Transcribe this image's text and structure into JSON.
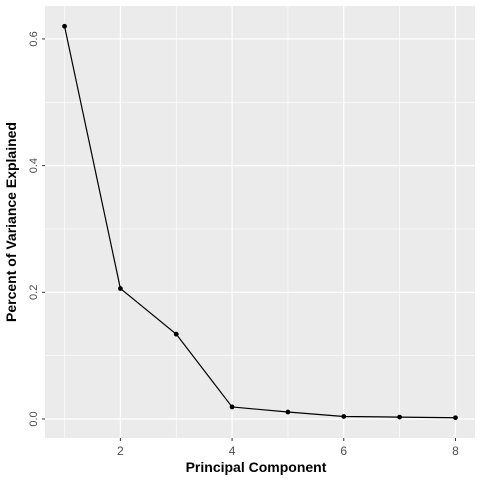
{
  "chart_data": {
    "type": "line",
    "xlabel": "Principal Component",
    "ylabel": "Percent of Variance Explained",
    "x": [
      1,
      2,
      3,
      4,
      5,
      6,
      7,
      8
    ],
    "series": [
      {
        "values": [
          0.62,
          0.206,
          0.134,
          0.019,
          0.011,
          0.004,
          0.003,
          0.002
        ]
      }
    ],
    "xlim": [
      0.65,
      8.35
    ],
    "ylim": [
      -0.03,
      0.652
    ],
    "x_ticks": [
      2,
      4,
      6,
      8
    ],
    "x_tick_labels": [
      "2",
      "4",
      "6",
      "8"
    ],
    "y_ticks": [
      0.0,
      0.2,
      0.4,
      0.6
    ],
    "y_tick_labels": [
      "0.0",
      "0.2",
      "0.4",
      "0.6"
    ],
    "grid": true,
    "theme": {
      "panel_background": "#ebebeb",
      "grid_color": "#ffffff",
      "line_color": "#000000",
      "point_color": "#000000"
    }
  }
}
